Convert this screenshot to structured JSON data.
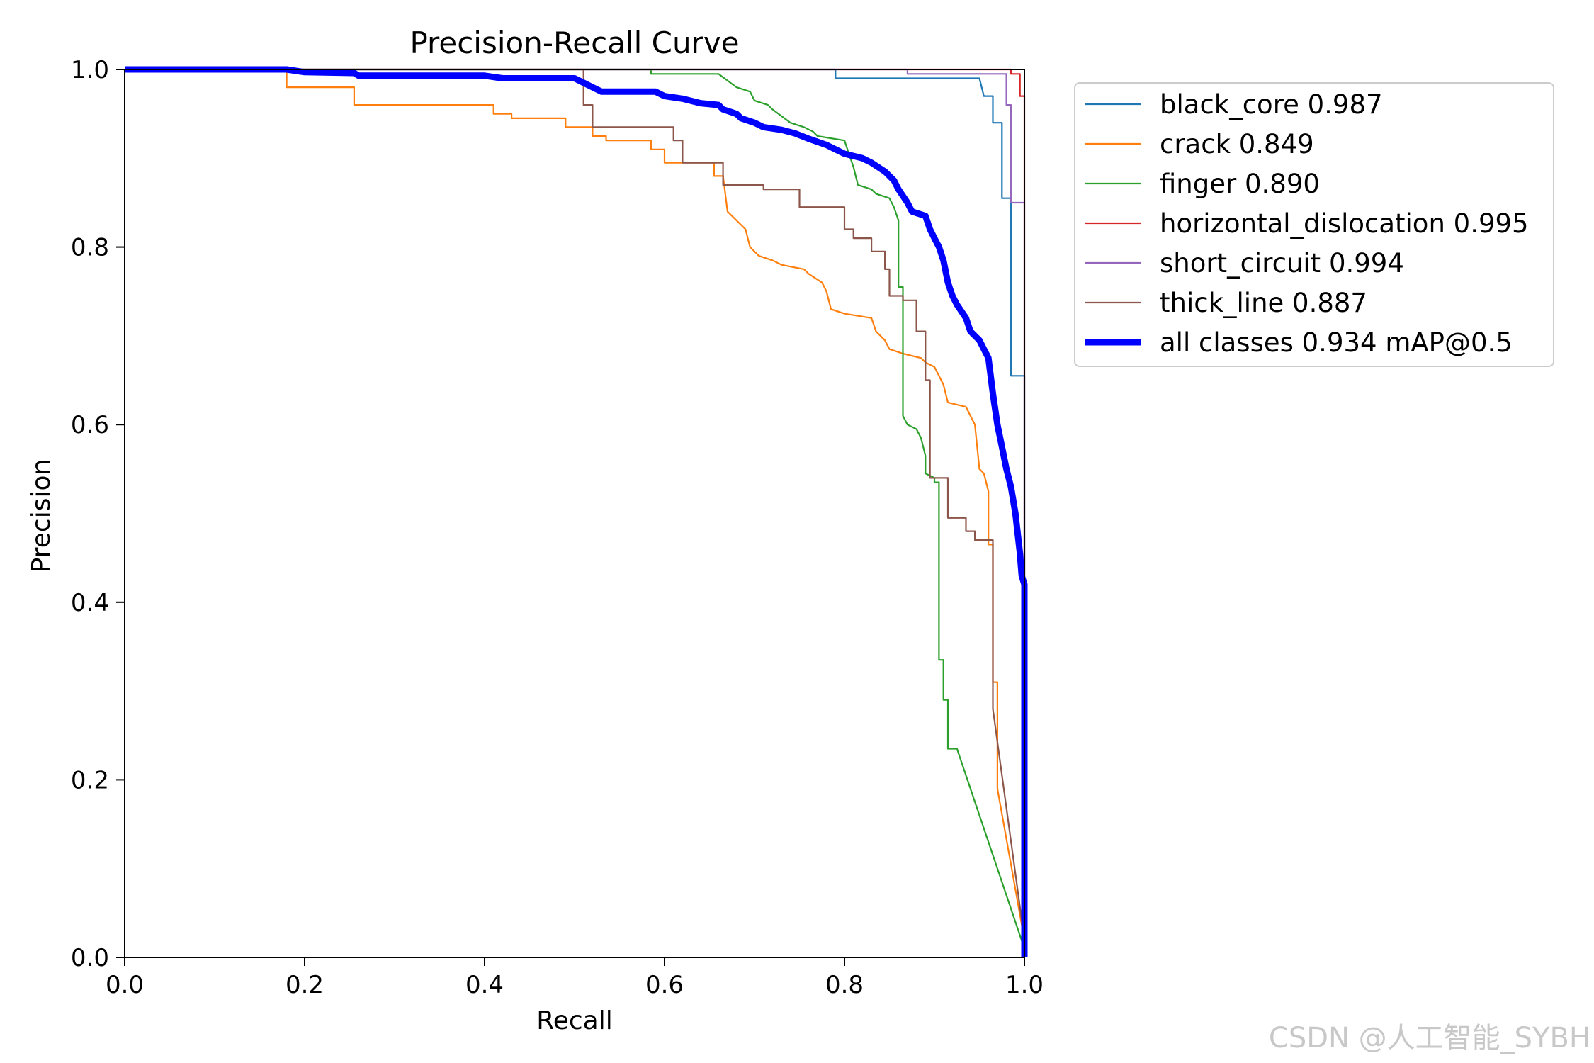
{
  "chart_data": {
    "type": "line",
    "title": "Precision-Recall Curve",
    "xlabel": "Recall",
    "ylabel": "Precision",
    "xlim": [
      0,
      1
    ],
    "ylim": [
      0,
      1
    ],
    "x_ticks": [
      "0.0",
      "0.2",
      "0.4",
      "0.6",
      "0.8",
      "1.0"
    ],
    "y_ticks": [
      "0.0",
      "0.2",
      "0.4",
      "0.6",
      "0.8",
      "1.0"
    ],
    "legend_position": "outside-top-right",
    "series": [
      {
        "name": "black_core 0.987",
        "color": "#1f77b4",
        "width": "thin",
        "points": [
          [
            0,
            1
          ],
          [
            0.79,
            1
          ],
          [
            0.79,
            0.99
          ],
          [
            0.95,
            0.99
          ],
          [
            0.955,
            0.97
          ],
          [
            0.965,
            0.97
          ],
          [
            0.965,
            0.94
          ],
          [
            0.975,
            0.94
          ],
          [
            0.975,
            0.855
          ],
          [
            0.985,
            0.855
          ],
          [
            0.985,
            0.655
          ],
          [
            0.995,
            0.655
          ],
          [
            1.0,
            0.655
          ],
          [
            1.0,
            0
          ]
        ]
      },
      {
        "name": "crack 0.849",
        "color": "#ff7f0e",
        "width": "thin",
        "points": [
          [
            0,
            1
          ],
          [
            0.18,
            1
          ],
          [
            0.18,
            0.98
          ],
          [
            0.255,
            0.98
          ],
          [
            0.255,
            0.96
          ],
          [
            0.41,
            0.96
          ],
          [
            0.41,
            0.95
          ],
          [
            0.43,
            0.95
          ],
          [
            0.43,
            0.945
          ],
          [
            0.49,
            0.945
          ],
          [
            0.49,
            0.935
          ],
          [
            0.52,
            0.935
          ],
          [
            0.52,
            0.925
          ],
          [
            0.535,
            0.925
          ],
          [
            0.535,
            0.92
          ],
          [
            0.585,
            0.92
          ],
          [
            0.585,
            0.91
          ],
          [
            0.6,
            0.91
          ],
          [
            0.6,
            0.895
          ],
          [
            0.655,
            0.895
          ],
          [
            0.655,
            0.88
          ],
          [
            0.665,
            0.88
          ],
          [
            0.67,
            0.84
          ],
          [
            0.68,
            0.83
          ],
          [
            0.69,
            0.82
          ],
          [
            0.695,
            0.8
          ],
          [
            0.705,
            0.79
          ],
          [
            0.72,
            0.785
          ],
          [
            0.73,
            0.78
          ],
          [
            0.755,
            0.775
          ],
          [
            0.76,
            0.77
          ],
          [
            0.775,
            0.76
          ],
          [
            0.78,
            0.75
          ],
          [
            0.785,
            0.73
          ],
          [
            0.8,
            0.725
          ],
          [
            0.83,
            0.72
          ],
          [
            0.835,
            0.705
          ],
          [
            0.845,
            0.695
          ],
          [
            0.85,
            0.685
          ],
          [
            0.865,
            0.68
          ],
          [
            0.885,
            0.675
          ],
          [
            0.89,
            0.67
          ],
          [
            0.9,
            0.665
          ],
          [
            0.905,
            0.655
          ],
          [
            0.91,
            0.645
          ],
          [
            0.915,
            0.625
          ],
          [
            0.935,
            0.62
          ],
          [
            0.945,
            0.6
          ],
          [
            0.95,
            0.55
          ],
          [
            0.955,
            0.545
          ],
          [
            0.96,
            0.525
          ],
          [
            0.96,
            0.465
          ],
          [
            0.965,
            0.465
          ],
          [
            0.965,
            0.31
          ],
          [
            0.97,
            0.31
          ],
          [
            0.97,
            0.19
          ],
          [
            1.0,
            0.02
          ]
        ]
      },
      {
        "name": "finger 0.890",
        "color": "#2ca02c",
        "width": "thin",
        "points": [
          [
            0,
            1
          ],
          [
            0.585,
            1
          ],
          [
            0.585,
            0.995
          ],
          [
            0.66,
            0.995
          ],
          [
            0.68,
            0.98
          ],
          [
            0.695,
            0.975
          ],
          [
            0.7,
            0.965
          ],
          [
            0.715,
            0.96
          ],
          [
            0.72,
            0.955
          ],
          [
            0.74,
            0.94
          ],
          [
            0.755,
            0.935
          ],
          [
            0.765,
            0.93
          ],
          [
            0.77,
            0.925
          ],
          [
            0.8,
            0.92
          ],
          [
            0.805,
            0.905
          ],
          [
            0.81,
            0.89
          ],
          [
            0.815,
            0.87
          ],
          [
            0.83,
            0.865
          ],
          [
            0.835,
            0.86
          ],
          [
            0.85,
            0.855
          ],
          [
            0.855,
            0.845
          ],
          [
            0.86,
            0.83
          ],
          [
            0.86,
            0.755
          ],
          [
            0.865,
            0.755
          ],
          [
            0.865,
            0.61
          ],
          [
            0.87,
            0.6
          ],
          [
            0.88,
            0.595
          ],
          [
            0.885,
            0.585
          ],
          [
            0.89,
            0.565
          ],
          [
            0.89,
            0.545
          ],
          [
            0.9,
            0.54
          ],
          [
            0.9,
            0.535
          ],
          [
            0.905,
            0.535
          ],
          [
            0.905,
            0.335
          ],
          [
            0.91,
            0.335
          ],
          [
            0.91,
            0.29
          ],
          [
            0.915,
            0.29
          ],
          [
            0.915,
            0.235
          ],
          [
            0.925,
            0.235
          ],
          [
            1.0,
            0.01
          ]
        ]
      },
      {
        "name": "horizontal_dislocation 0.995",
        "color": "#d62728",
        "width": "thin",
        "points": [
          [
            0,
            1
          ],
          [
            0.985,
            1
          ],
          [
            0.985,
            0.995
          ],
          [
            0.995,
            0.995
          ],
          [
            0.995,
            0.97
          ],
          [
            1.0,
            0.97
          ],
          [
            1.0,
            0
          ]
        ]
      },
      {
        "name": "short_circuit 0.994",
        "color": "#9467bd",
        "width": "thin",
        "points": [
          [
            0,
            1
          ],
          [
            0.87,
            1
          ],
          [
            0.87,
            0.995
          ],
          [
            0.98,
            0.995
          ],
          [
            0.98,
            0.96
          ],
          [
            0.985,
            0.96
          ],
          [
            0.985,
            0.85
          ],
          [
            0.995,
            0.85
          ],
          [
            1.0,
            0.85
          ],
          [
            1.0,
            0
          ]
        ]
      },
      {
        "name": "thick_line 0.887",
        "color": "#8c564b",
        "width": "thin",
        "points": [
          [
            0,
            1
          ],
          [
            0.51,
            1
          ],
          [
            0.51,
            0.96
          ],
          [
            0.52,
            0.96
          ],
          [
            0.52,
            0.935
          ],
          [
            0.61,
            0.935
          ],
          [
            0.61,
            0.92
          ],
          [
            0.62,
            0.92
          ],
          [
            0.62,
            0.895
          ],
          [
            0.665,
            0.895
          ],
          [
            0.665,
            0.87
          ],
          [
            0.71,
            0.87
          ],
          [
            0.71,
            0.865
          ],
          [
            0.75,
            0.865
          ],
          [
            0.75,
            0.845
          ],
          [
            0.8,
            0.845
          ],
          [
            0.8,
            0.82
          ],
          [
            0.81,
            0.82
          ],
          [
            0.81,
            0.81
          ],
          [
            0.83,
            0.81
          ],
          [
            0.83,
            0.795
          ],
          [
            0.845,
            0.795
          ],
          [
            0.845,
            0.775
          ],
          [
            0.85,
            0.775
          ],
          [
            0.85,
            0.745
          ],
          [
            0.865,
            0.745
          ],
          [
            0.865,
            0.74
          ],
          [
            0.88,
            0.74
          ],
          [
            0.88,
            0.705
          ],
          [
            0.89,
            0.705
          ],
          [
            0.89,
            0.65
          ],
          [
            0.895,
            0.65
          ],
          [
            0.895,
            0.54
          ],
          [
            0.915,
            0.54
          ],
          [
            0.915,
            0.495
          ],
          [
            0.935,
            0.495
          ],
          [
            0.935,
            0.48
          ],
          [
            0.945,
            0.48
          ],
          [
            0.945,
            0.47
          ],
          [
            0.965,
            0.47
          ],
          [
            0.965,
            0.28
          ],
          [
            1.0,
            0.02
          ]
        ]
      },
      {
        "name": "all classes 0.934 mAP@0.5",
        "color": "#0000ff",
        "width": "thick",
        "points": [
          [
            0,
            1
          ],
          [
            0.18,
            1
          ],
          [
            0.2,
            0.997
          ],
          [
            0.255,
            0.996
          ],
          [
            0.26,
            0.993
          ],
          [
            0.4,
            0.993
          ],
          [
            0.42,
            0.99
          ],
          [
            0.5,
            0.99
          ],
          [
            0.51,
            0.985
          ],
          [
            0.52,
            0.98
          ],
          [
            0.53,
            0.975
          ],
          [
            0.59,
            0.975
          ],
          [
            0.6,
            0.97
          ],
          [
            0.62,
            0.967
          ],
          [
            0.64,
            0.962
          ],
          [
            0.66,
            0.96
          ],
          [
            0.665,
            0.955
          ],
          [
            0.68,
            0.95
          ],
          [
            0.685,
            0.945
          ],
          [
            0.7,
            0.94
          ],
          [
            0.71,
            0.935
          ],
          [
            0.73,
            0.932
          ],
          [
            0.745,
            0.928
          ],
          [
            0.76,
            0.922
          ],
          [
            0.78,
            0.915
          ],
          [
            0.79,
            0.91
          ],
          [
            0.8,
            0.905
          ],
          [
            0.82,
            0.9
          ],
          [
            0.83,
            0.895
          ],
          [
            0.845,
            0.885
          ],
          [
            0.855,
            0.875
          ],
          [
            0.86,
            0.865
          ],
          [
            0.87,
            0.85
          ],
          [
            0.875,
            0.84
          ],
          [
            0.89,
            0.835
          ],
          [
            0.895,
            0.82
          ],
          [
            0.9,
            0.81
          ],
          [
            0.905,
            0.8
          ],
          [
            0.91,
            0.785
          ],
          [
            0.915,
            0.76
          ],
          [
            0.92,
            0.745
          ],
          [
            0.925,
            0.735
          ],
          [
            0.935,
            0.72
          ],
          [
            0.94,
            0.705
          ],
          [
            0.95,
            0.695
          ],
          [
            0.955,
            0.685
          ],
          [
            0.96,
            0.675
          ],
          [
            0.965,
            0.635
          ],
          [
            0.97,
            0.6
          ],
          [
            0.975,
            0.575
          ],
          [
            0.98,
            0.55
          ],
          [
            0.985,
            0.53
          ],
          [
            0.99,
            0.5
          ],
          [
            0.995,
            0.455
          ],
          [
            0.997,
            0.43
          ],
          [
            1.0,
            0.42
          ],
          [
            1.0,
            0
          ]
        ]
      }
    ]
  },
  "watermark": "CSDN @人工智能_SYBH"
}
